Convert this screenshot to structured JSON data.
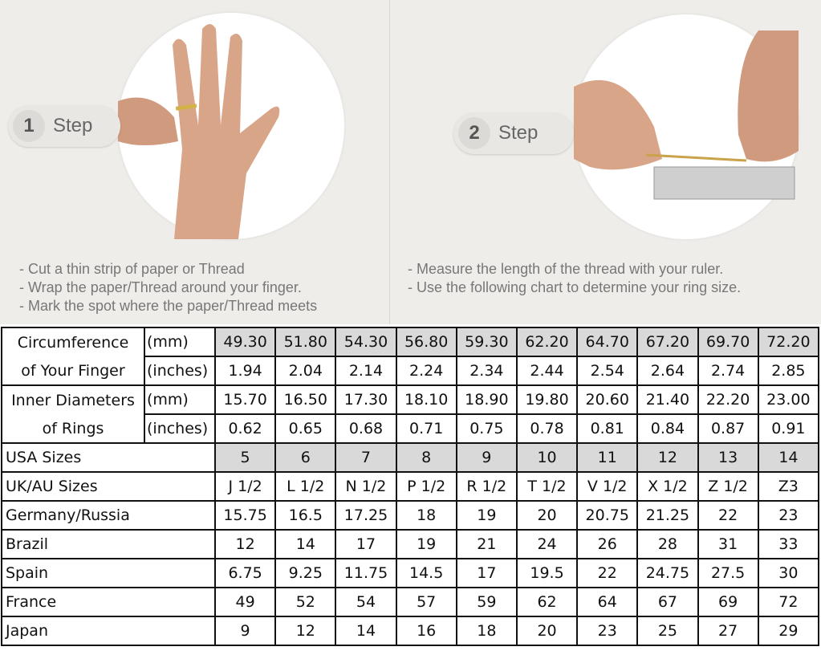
{
  "steps": [
    {
      "number": "1",
      "label": "Step",
      "instructions": [
        "- Cut a thin strip of paper or Thread",
        "- Wrap the paper/Thread around your finger.",
        "- Mark the spot where the paper/Thread meets"
      ]
    },
    {
      "number": "2",
      "label": "Step",
      "instructions": [
        "- Measure the length of the thread with your ruler.",
        "- Use the following chart to determine your ring size."
      ]
    }
  ],
  "table": {
    "circumference": {
      "label1": "Circumference",
      "label2": "of Your Finger",
      "unit_mm": "(mm)",
      "unit_in": "(inches)",
      "mm": [
        "49.30",
        "51.80",
        "54.30",
        "56.80",
        "59.30",
        "62.20",
        "64.70",
        "67.20",
        "69.70",
        "72.20"
      ],
      "inches": [
        "1.94",
        "2.04",
        "2.14",
        "2.24",
        "2.34",
        "2.44",
        "2.54",
        "2.64",
        "2.74",
        "2.85"
      ]
    },
    "diameter": {
      "label1": "Inner Diameters",
      "label2": "of Rings",
      "unit_mm": "(mm)",
      "unit_in": "(inches)",
      "mm": [
        "15.70",
        "16.50",
        "17.30",
        "18.10",
        "18.90",
        "19.80",
        "20.60",
        "21.40",
        "22.20",
        "23.00"
      ],
      "inches": [
        "0.62",
        "0.65",
        "0.68",
        "0.71",
        "0.75",
        "0.78",
        "0.81",
        "0.84",
        "0.87",
        "0.91"
      ]
    },
    "rows": [
      {
        "label": "USA Sizes",
        "values": [
          "5",
          "6",
          "7",
          "8",
          "9",
          "10",
          "11",
          "12",
          "13",
          "14"
        ]
      },
      {
        "label": "UK/AU Sizes",
        "values": [
          "J 1/2",
          "L 1/2",
          "N 1/2",
          "P 1/2",
          "R 1/2",
          "T 1/2",
          "V 1/2",
          "X 1/2",
          "Z 1/2",
          "Z3"
        ]
      },
      {
        "label": "Germany/Russia",
        "values": [
          "15.75",
          "16.5",
          "17.25",
          "18",
          "19",
          "20",
          "20.75",
          "21.25",
          "22",
          "23"
        ]
      },
      {
        "label": "Brazil",
        "values": [
          "12",
          "14",
          "17",
          "19",
          "21",
          "24",
          "26",
          "28",
          "31",
          "33"
        ]
      },
      {
        "label": "Spain",
        "values": [
          "6.75",
          "9.25",
          "11.75",
          "14.5",
          "17",
          "19.5",
          "22",
          "24.75",
          "27.5",
          "30"
        ]
      },
      {
        "label": "France",
        "values": [
          "49",
          "52",
          "54",
          "57",
          "59",
          "62",
          "64",
          "67",
          "69",
          "72"
        ]
      },
      {
        "label": "Japan",
        "values": [
          "9",
          "12",
          "14",
          "16",
          "18",
          "20",
          "23",
          "25",
          "27",
          "29"
        ]
      }
    ]
  }
}
